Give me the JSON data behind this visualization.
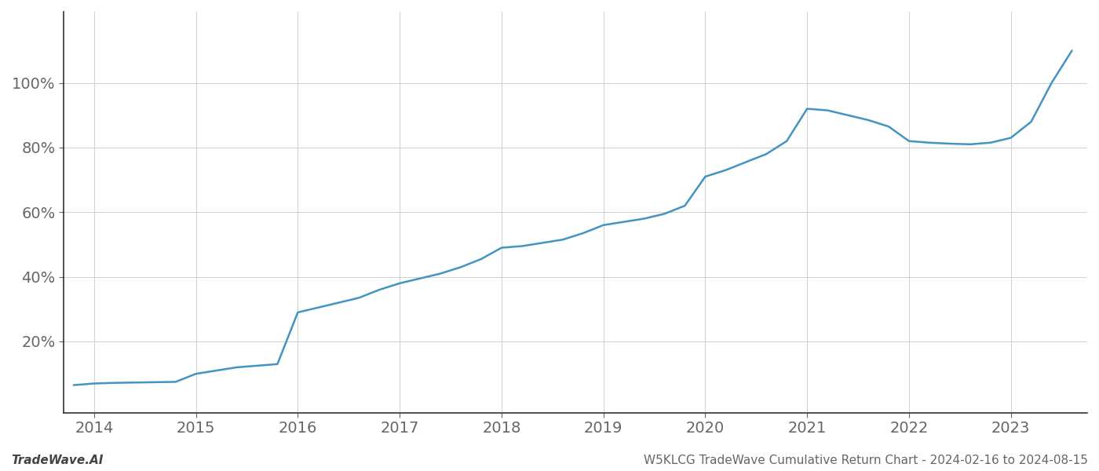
{
  "x_years": [
    2013.8,
    2014.0,
    2014.2,
    2014.4,
    2014.6,
    2014.8,
    2015.0,
    2015.2,
    2015.4,
    2015.6,
    2015.8,
    2016.0,
    2016.2,
    2016.4,
    2016.6,
    2016.8,
    2017.0,
    2017.2,
    2017.4,
    2017.6,
    2017.8,
    2018.0,
    2018.2,
    2018.4,
    2018.6,
    2018.8,
    2019.0,
    2019.2,
    2019.4,
    2019.6,
    2019.8,
    2020.0,
    2020.2,
    2020.4,
    2020.6,
    2020.8,
    2021.0,
    2021.2,
    2021.4,
    2021.6,
    2021.8,
    2022.0,
    2022.2,
    2022.4,
    2022.6,
    2022.8,
    2023.0,
    2023.2,
    2023.4,
    2023.6
  ],
  "y_values": [
    6.5,
    7.0,
    7.2,
    7.3,
    7.4,
    7.5,
    10.0,
    11.0,
    12.0,
    12.5,
    13.0,
    29.0,
    30.5,
    32.0,
    33.5,
    36.0,
    38.0,
    39.5,
    41.0,
    43.0,
    45.5,
    49.0,
    49.5,
    50.5,
    51.5,
    53.5,
    56.0,
    57.0,
    58.0,
    59.5,
    62.0,
    71.0,
    73.0,
    75.5,
    78.0,
    82.0,
    92.0,
    91.5,
    90.0,
    88.5,
    86.5,
    82.0,
    81.5,
    81.2,
    81.0,
    81.5,
    83.0,
    88.0,
    100.0,
    110.0
  ],
  "line_color": "#4393c3",
  "line_width": 1.8,
  "ytick_labels": [
    "20%",
    "40%",
    "60%",
    "80%",
    "100%"
  ],
  "ytick_values": [
    20,
    40,
    60,
    80,
    100
  ],
  "xtick_labels": [
    "2014",
    "2015",
    "2016",
    "2017",
    "2018",
    "2019",
    "2020",
    "2021",
    "2022",
    "2023"
  ],
  "xtick_values": [
    2014,
    2015,
    2016,
    2017,
    2018,
    2019,
    2020,
    2021,
    2022,
    2023
  ],
  "xlim": [
    2013.7,
    2023.75
  ],
  "ylim": [
    -2,
    122
  ],
  "grid_color": "#d0d0d0",
  "grid_linewidth": 0.7,
  "bg_color": "#ffffff",
  "left_spine_color": "#333333",
  "bottom_spine_color": "#333333",
  "tick_label_color": "#666666",
  "footer_left": "TradeWave.AI",
  "footer_right": "W5KLCG TradeWave Cumulative Return Chart - 2024-02-16 to 2024-08-15",
  "footer_fontsize": 11,
  "tick_fontsize": 14
}
